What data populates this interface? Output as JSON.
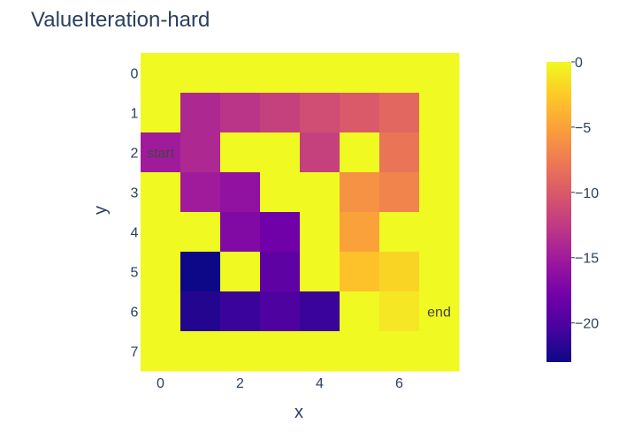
{
  "chart_data": {
    "type": "heatmap",
    "title": "ValueIteration-hard",
    "xlabel": "x",
    "ylabel": "y",
    "x": [
      0,
      1,
      2,
      3,
      4,
      5,
      6,
      7
    ],
    "y": [
      0,
      1,
      2,
      3,
      4,
      5,
      6,
      7
    ],
    "x_tick_labels": [
      "0",
      "2",
      "4",
      "6"
    ],
    "y_tick_labels": [
      "0",
      "1",
      "2",
      "3",
      "4",
      "5",
      "6",
      "7"
    ],
    "y_axis": "reversed",
    "z": [
      [
        0,
        0,
        0,
        0,
        0,
        0,
        0,
        0
      ],
      [
        0,
        -14,
        -13,
        -12,
        -11,
        -10,
        -9,
        0
      ],
      [
        -15,
        -14,
        0,
        0,
        -12,
        0,
        -8,
        0
      ],
      [
        0,
        -15,
        -16,
        0,
        0,
        -6,
        -7,
        0
      ],
      [
        0,
        0,
        -17,
        -18,
        0,
        -5,
        0,
        0
      ],
      [
        0,
        -23,
        0,
        -19,
        0,
        -3,
        -2,
        0
      ],
      [
        0,
        -22,
        -21,
        -20,
        -21,
        0,
        -1,
        0
      ],
      [
        0,
        0,
        0,
        0,
        0,
        0,
        0,
        0
      ]
    ],
    "zlim": [
      -23,
      0
    ],
    "colorscale": "Plasma",
    "colorbar_ticks": [
      "0",
      "−5",
      "−10",
      "−15",
      "−20"
    ],
    "colorbar_tick_values": [
      0,
      -5,
      -10,
      -15,
      -20
    ],
    "annotations": [
      {
        "x": 0,
        "y": 2,
        "text": "start"
      },
      {
        "x": 7,
        "y": 6,
        "text": "end"
      }
    ]
  }
}
